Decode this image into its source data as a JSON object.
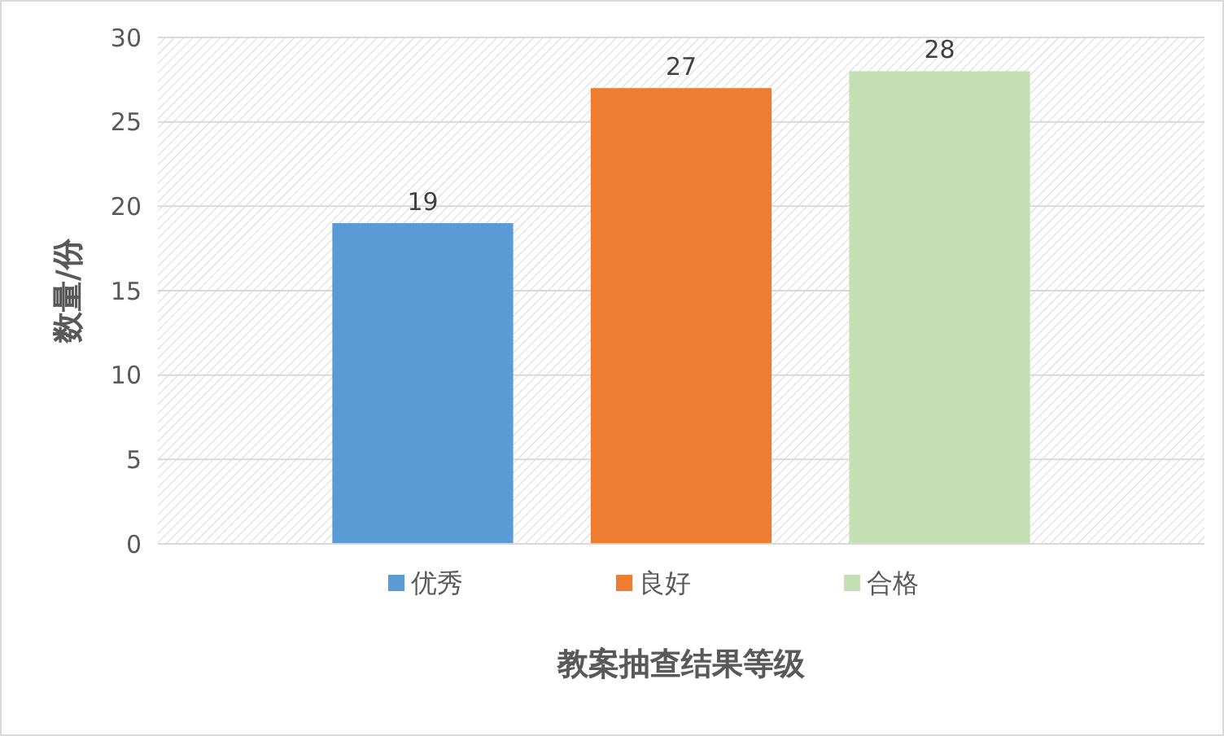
{
  "chart_data": {
    "type": "bar",
    "xlabel": "教案抽查结果等级",
    "ylabel": "数量/份",
    "categories": [
      null
    ],
    "series": [
      {
        "name": "优秀",
        "color": "#5b9bd5",
        "values": [
          19
        ]
      },
      {
        "name": "良好",
        "color": "#ed7d31",
        "values": [
          27
        ]
      },
      {
        "name": "合格",
        "color": "#c5e0b4",
        "values": [
          28
        ]
      }
    ],
    "ylim": [
      0,
      30
    ],
    "yticks": [
      0,
      5,
      10,
      15,
      20,
      25,
      30
    ],
    "grid": "y",
    "legend": "bottom",
    "data_labels": true
  }
}
